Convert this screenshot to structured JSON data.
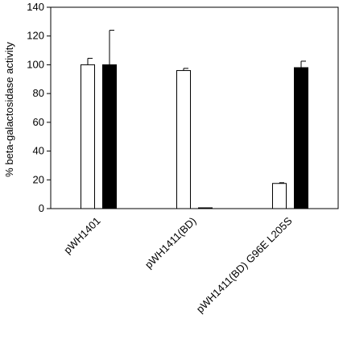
{
  "chart_data": {
    "type": "bar",
    "title": "",
    "xlabel": "",
    "ylabel": "% beta-galactosidase activity",
    "ylim": [
      0,
      140
    ],
    "yticks": [
      0,
      20,
      40,
      60,
      80,
      100,
      120,
      140
    ],
    "categories": [
      "pWH1401",
      "pWH1411(BD)",
      "pWH1411(BD) G96E L205S"
    ],
    "series": [
      {
        "values": [
          100,
          96,
          17.5
        ],
        "errors": [
          4.5,
          1.5,
          0.5
        ],
        "color": "#ffffff"
      },
      {
        "values": [
          100,
          0.5,
          98
        ],
        "errors": [
          24,
          0,
          4.5
        ],
        "color": "#000000"
      }
    ],
    "grid": false,
    "legend": "none"
  }
}
